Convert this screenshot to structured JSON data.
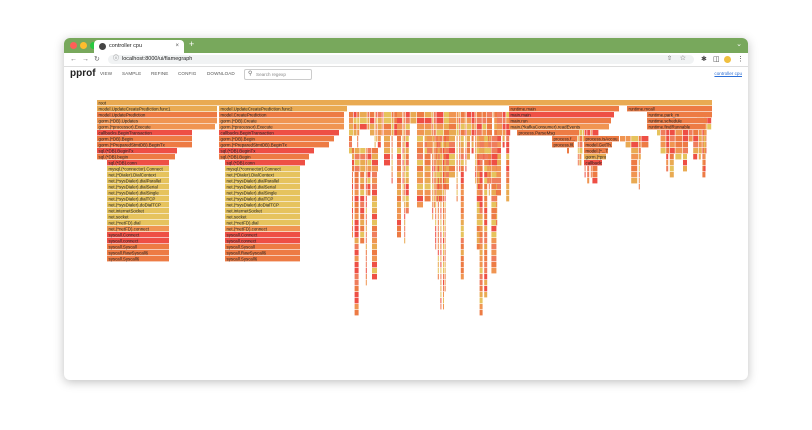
{
  "browser": {
    "tab_title": "controller cpu",
    "tab_close": "×",
    "new_tab": "+",
    "tab_menu": "⌄",
    "url": "localhost:8000/ui/flamegraph",
    "traffic_colors": [
      "#ff5f57",
      "#febc2e",
      "#28c840"
    ],
    "tabbar_color": "#78a85c"
  },
  "app": {
    "logo": "pprof",
    "menu": [
      "VIEW",
      "SAMPLE",
      "REFINE",
      "CONFIG",
      "DOWNLOAD"
    ],
    "search_placeholder": "Search regexp",
    "profile_link": "controller cpu"
  },
  "flamegraph": {
    "colors": {
      "red": "#ee4f45",
      "orange": "#ed7b44",
      "lt_orange": "#f09552",
      "amber": "#e9aa52",
      "yellow": "#e6c35d",
      "salmon": "#ef7d5c"
    },
    "labeled_frames": [
      {
        "label": "root",
        "depth": 0,
        "color": "amber"
      },
      {
        "label": "model.UpdateCreatePrediction.func1",
        "depth": 1,
        "color": "amber"
      },
      {
        "label": "model.UpdatePrediction",
        "depth": 2,
        "color": "orange"
      },
      {
        "label": "gorm.(*DB).Updates",
        "depth": 3,
        "color": "lt_orange"
      },
      {
        "label": "gorm.(*processor).Execute",
        "depth": 4,
        "color": "lt_orange"
      },
      {
        "label": "callbacks.BeginTransaction",
        "depth": 5,
        "color": "red"
      },
      {
        "label": "gorm.(*DB).Begin",
        "depth": 6,
        "color": "orange"
      },
      {
        "label": "gorm.(*PreparedStmtDB).BeginTx",
        "depth": 7,
        "color": "orange"
      },
      {
        "label": "sql.(*DB).BeginTx",
        "depth": 8,
        "color": "red"
      },
      {
        "label": "sql.(*DB).begin",
        "depth": 9,
        "color": "orange"
      },
      {
        "label": "sql.(*DB).conn",
        "depth": 10,
        "color": "red"
      },
      {
        "label": "mysql.(*connector).Connect",
        "depth": 11,
        "color": "yellow"
      },
      {
        "label": "net.(*Dialer).DialContext",
        "depth": 12,
        "color": "yellow"
      },
      {
        "label": "net.(*sysDialer).dialParallel",
        "depth": 13,
        "color": "yellow"
      },
      {
        "label": "net.(*sysDialer).dialSerial",
        "depth": 14,
        "color": "yellow"
      },
      {
        "label": "net.(*sysDialer).dialSingle",
        "depth": 15,
        "color": "yellow"
      },
      {
        "label": "net.(*sysDialer).dialTCP",
        "depth": 16,
        "color": "yellow"
      },
      {
        "label": "net.(*sysDialer).doDialTCP",
        "depth": 17,
        "color": "yellow"
      },
      {
        "label": "net.internetSocket",
        "depth": 18,
        "color": "yellow"
      },
      {
        "label": "net.socket",
        "depth": 19,
        "color": "yellow"
      },
      {
        "label": "net.(*netFD).dial",
        "depth": 20,
        "color": "yellow"
      },
      {
        "label": "net.(*netFD).connect",
        "depth": 21,
        "color": "lt_orange"
      },
      {
        "label": "syscall.Connect",
        "depth": 22,
        "color": "red"
      },
      {
        "label": "syscall.connect",
        "depth": 23,
        "color": "red"
      },
      {
        "label": "syscall.Syscall",
        "depth": 24,
        "color": "orange"
      },
      {
        "label": "syscall.RawSyscall6",
        "depth": 25,
        "color": "orange"
      },
      {
        "label": "syscall.Syscall6",
        "depth": 26,
        "color": "orange"
      },
      {
        "label": "model.UpdateCreatePrediction.func2",
        "depth": 1,
        "color": "amber"
      },
      {
        "label": "model.CreatePrediction",
        "depth": 2,
        "color": "orange"
      },
      {
        "label": "gorm.(*DB).Create",
        "depth": 3,
        "color": "lt_orange"
      },
      {
        "label": "gorm.(*processor).Execute",
        "depth": 4,
        "color": "lt_orange"
      },
      {
        "label": "callbacks.BeginTransaction",
        "depth": 5,
        "color": "red"
      },
      {
        "label": "gorm.(*DB).Begin",
        "depth": 6,
        "color": "orange"
      },
      {
        "label": "gorm.(*PreparedStmtDB).BeginTx",
        "depth": 7,
        "color": "orange"
      },
      {
        "label": "sql.(*DB).BeginTx",
        "depth": 8,
        "color": "red"
      },
      {
        "label": "sql.(*DB).Begin",
        "depth": 9,
        "color": "orange"
      },
      {
        "label": "sql.(*DB).conn",
        "depth": 10,
        "color": "red"
      },
      {
        "label": "mysql.(*connector).Connect",
        "depth": 11,
        "color": "yellow"
      },
      {
        "label": "net.(*Dialer).DialContext",
        "depth": 12,
        "color": "yellow"
      },
      {
        "label": "net.(*sysDialer).dialParallel",
        "depth": 13,
        "color": "yellow"
      },
      {
        "label": "net.(*sysDialer).dialSerial",
        "depth": 14,
        "color": "yellow"
      },
      {
        "label": "net.(*sysDialer).dialSingle",
        "depth": 15,
        "color": "yellow"
      },
      {
        "label": "net.(*sysDialer).dialTCP",
        "depth": 16,
        "color": "yellow"
      },
      {
        "label": "net.(*sysDialer).doDialTCP",
        "depth": 17,
        "color": "yellow"
      },
      {
        "label": "net.internetSocket",
        "depth": 18,
        "color": "yellow"
      },
      {
        "label": "net.socket",
        "depth": 19,
        "color": "yellow"
      },
      {
        "label": "net.(*netFD).dial",
        "depth": 20,
        "color": "yellow"
      },
      {
        "label": "net.(*netFD).connect",
        "depth": 21,
        "color": "lt_orange"
      },
      {
        "label": "syscall.Connect",
        "depth": 22,
        "color": "red"
      },
      {
        "label": "syscall.connect",
        "depth": 23,
        "color": "red"
      },
      {
        "label": "syscall.Syscall",
        "depth": 24,
        "color": "orange"
      },
      {
        "label": "syscall.RawSyscall6",
        "depth": 25,
        "color": "orange"
      },
      {
        "label": "syscall.Syscall6",
        "depth": 26,
        "color": "orange"
      },
      {
        "label": "runtime.main",
        "depth": 1,
        "color": "orange"
      },
      {
        "label": "main.main",
        "depth": 2,
        "color": "red"
      },
      {
        "label": "main.run",
        "depth": 3,
        "color": "orange"
      },
      {
        "label": "main.(*kafkaConsumer).readEvents",
        "depth": 4,
        "color": "lt_orange"
      },
      {
        "label": "process.ParseMsg",
        "depth": 5,
        "color": "orange"
      },
      {
        "label": "process.f...",
        "depth": 6,
        "color": "orange"
      },
      {
        "label": "process.isAccou...",
        "depth": 6,
        "color": "orange"
      },
      {
        "label": "process.fil...",
        "depth": 7,
        "color": "orange"
      },
      {
        "label": "model.GetTh...",
        "depth": 7,
        "color": "orange"
      },
      {
        "label": "model.(*...Th...",
        "depth": 8,
        "color": "orange"
      },
      {
        "label": "gorm.(*proc...",
        "depth": 9,
        "color": "amber"
      },
      {
        "label": "callbacks.Q...",
        "depth": 10,
        "color": "red"
      },
      {
        "label": "runtime.mcall",
        "depth": 1,
        "color": "orange"
      },
      {
        "label": "runtime.park_m",
        "depth": 2,
        "color": "orange"
      },
      {
        "label": "runtime.schedule",
        "depth": 3,
        "color": "orange"
      },
      {
        "label": "runtime.findRunnable",
        "depth": 4,
        "color": "orange"
      }
    ]
  }
}
